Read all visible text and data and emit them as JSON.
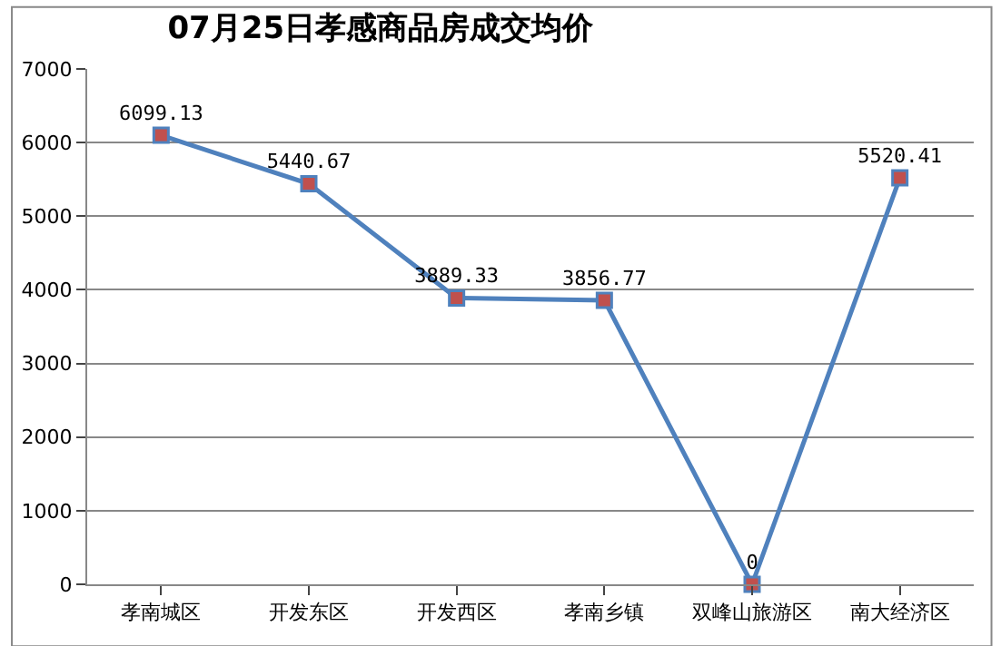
{
  "chart_data": {
    "type": "line",
    "title": "07月25日孝感商品房成交均价",
    "categories": [
      "孝南城区",
      "开发东区",
      "开发西区",
      "孝南乡镇",
      "双峰山旅游区",
      "南大经济区"
    ],
    "series": [
      {
        "color": "#4f81bd",
        "values": [
          6099.13,
          5440.67,
          3889.33,
          3856.77,
          0,
          5520.41
        ],
        "value_labels": [
          "6099.13",
          "5440.67",
          "3889.33",
          "3856.77",
          "0",
          "5520.41"
        ]
      }
    ],
    "ylim": [
      0,
      7000
    ],
    "yticks": [
      0,
      1000,
      2000,
      3000,
      4000,
      5000,
      6000,
      7000
    ],
    "grid": "y",
    "marker": "square",
    "line_style": "solid",
    "legend": false
  }
}
